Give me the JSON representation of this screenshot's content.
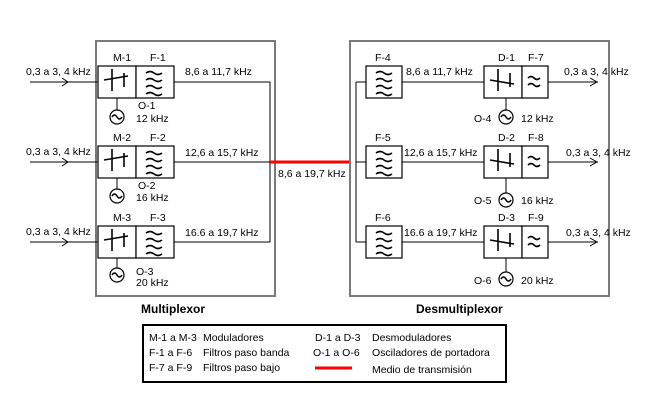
{
  "multiplexor": {
    "title": "Multiplexor",
    "channels": [
      {
        "input": "0,3 a 3, 4 kHz",
        "modulator": "M-1",
        "filter": "F-1",
        "oscillator": "O-1",
        "osc_freq": "12 kHz",
        "output": "8,6 a 11,7 kHz"
      },
      {
        "input": "0,3 a 3, 4 kHz",
        "modulator": "M-2",
        "filter": "F-2",
        "oscillator": "O-2",
        "osc_freq": "16 kHz",
        "output": "12,6 a 15,7 kHz"
      },
      {
        "input": "0,3 a 3, 4 kHz",
        "modulator": "M-3",
        "filter": "F-3",
        "oscillator": "O-3",
        "osc_freq": "20 kHz",
        "output": "16.6 a 19,7 kHz"
      }
    ]
  },
  "link": {
    "label": "8,6 a 19,7 kHz",
    "color": "#ff0000"
  },
  "demultiplexor": {
    "title": "Desmultiplexor",
    "channels": [
      {
        "filter_in": "F-4",
        "band": "8,6 a 11,7 kHz",
        "demodulator": "D-1",
        "lowpass": "F-7",
        "oscillator": "O-4",
        "osc_freq": "12 kHz",
        "output": "0,3 a 3, 4 kHz"
      },
      {
        "filter_in": "F-5",
        "band": "12,6 a 15,7 kHz",
        "demodulator": "D-2",
        "lowpass": "F-8",
        "oscillator": "O-5",
        "osc_freq": "16 kHz",
        "output": "0,3 a 3, 4 kHz"
      },
      {
        "filter_in": "F-6",
        "band": "16.6 a 19,7 kHz",
        "demodulator": "D-3",
        "lowpass": "F-9",
        "oscillator": "O-6",
        "osc_freq": "20 kHz",
        "output": "0,3 a 3, 4 kHz"
      }
    ]
  },
  "legend": {
    "left": [
      {
        "code": "M-1 a M-3",
        "desc": "Moduladores"
      },
      {
        "code": "F-1 a F-6",
        "desc": "Filtros paso banda"
      },
      {
        "code": "F-7 a F-9",
        "desc": "Filtros paso bajo"
      }
    ],
    "right": [
      {
        "code": "D-1  a  D-3",
        "desc": "Desmoduladores"
      },
      {
        "code": "O-1  a  O-6",
        "desc": "Osciladores de portadora"
      }
    ],
    "transmission": "Medio de transmisión"
  }
}
